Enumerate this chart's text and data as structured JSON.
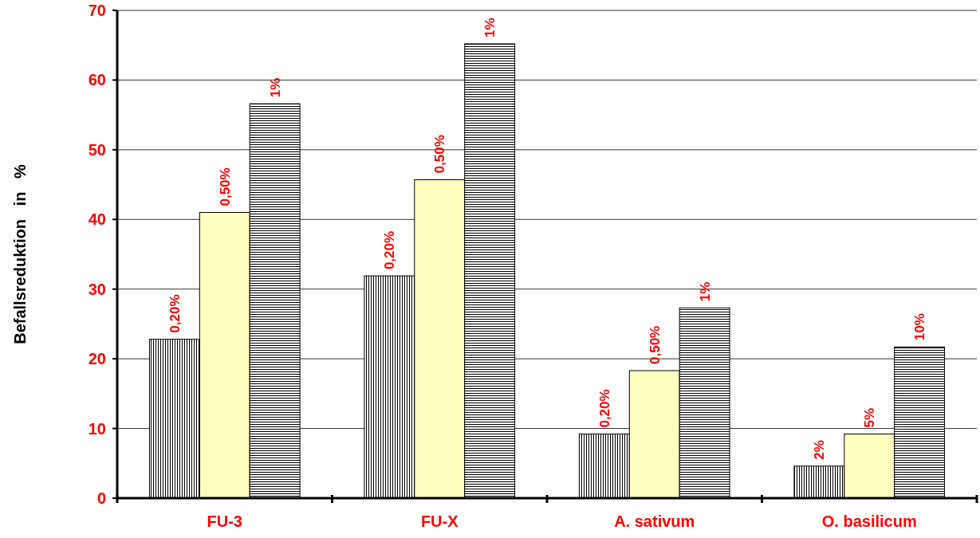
{
  "chart_data": {
    "type": "bar",
    "ylabel": "Befallsreduktion   in   %",
    "categories": [
      "FU-3",
      "FU-X",
      "A. sativum",
      "O. basilicum"
    ],
    "series": [
      {
        "color": "#000000",
        "values": [
          22.8,
          31.9,
          9.2,
          4.6
        ]
      },
      {
        "color": "#ffffc0",
        "values": [
          41.0,
          45.7,
          18.3,
          9.2
        ]
      },
      {
        "color": "#000000",
        "values": [
          56.6,
          65.2,
          27.3,
          21.7
        ]
      }
    ],
    "annotations": [
      "0,20%",
      "0,50%",
      "1%",
      "0,20%",
      "0,50%",
      "1%",
      "0,20%",
      "0,50%",
      "1%",
      "2%",
      "5%",
      "10%"
    ],
    "ylim": [
      0,
      70
    ],
    "yticks": [
      0,
      10,
      20,
      30,
      40,
      50,
      60,
      70
    ],
    "grid": "y"
  }
}
